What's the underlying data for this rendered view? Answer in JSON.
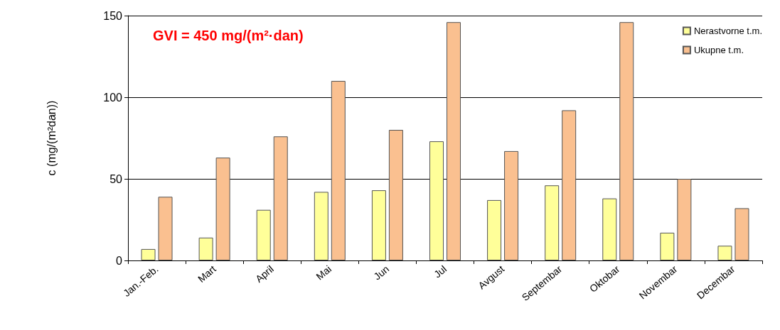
{
  "chart_data": {
    "type": "bar",
    "ylabel": "c (mg/(m²dan))",
    "annotations": [
      "GVI = 450 mg/(m²·dan)"
    ],
    "categories": [
      "Jan.-Feb.",
      "Mart",
      "April",
      "Mai",
      "Jun",
      "Jul",
      "Avgust",
      "Septembar",
      "Oktobar",
      "Novembar",
      "Decembar"
    ],
    "series": [
      {
        "name": "Nerastvorne t.m.",
        "color": "#ffff99",
        "values": [
          7,
          14,
          31,
          42,
          43,
          73,
          37,
          46,
          38,
          17,
          9
        ]
      },
      {
        "name": "Ukupne t.m.",
        "color": "#fac090",
        "values": [
          39,
          63,
          76,
          110,
          80,
          146,
          67,
          92,
          146,
          50,
          32
        ]
      }
    ],
    "ylim": [
      0,
      150
    ],
    "yticks": [
      0,
      50,
      100,
      150
    ],
    "grid": "y",
    "legend": "top right"
  }
}
